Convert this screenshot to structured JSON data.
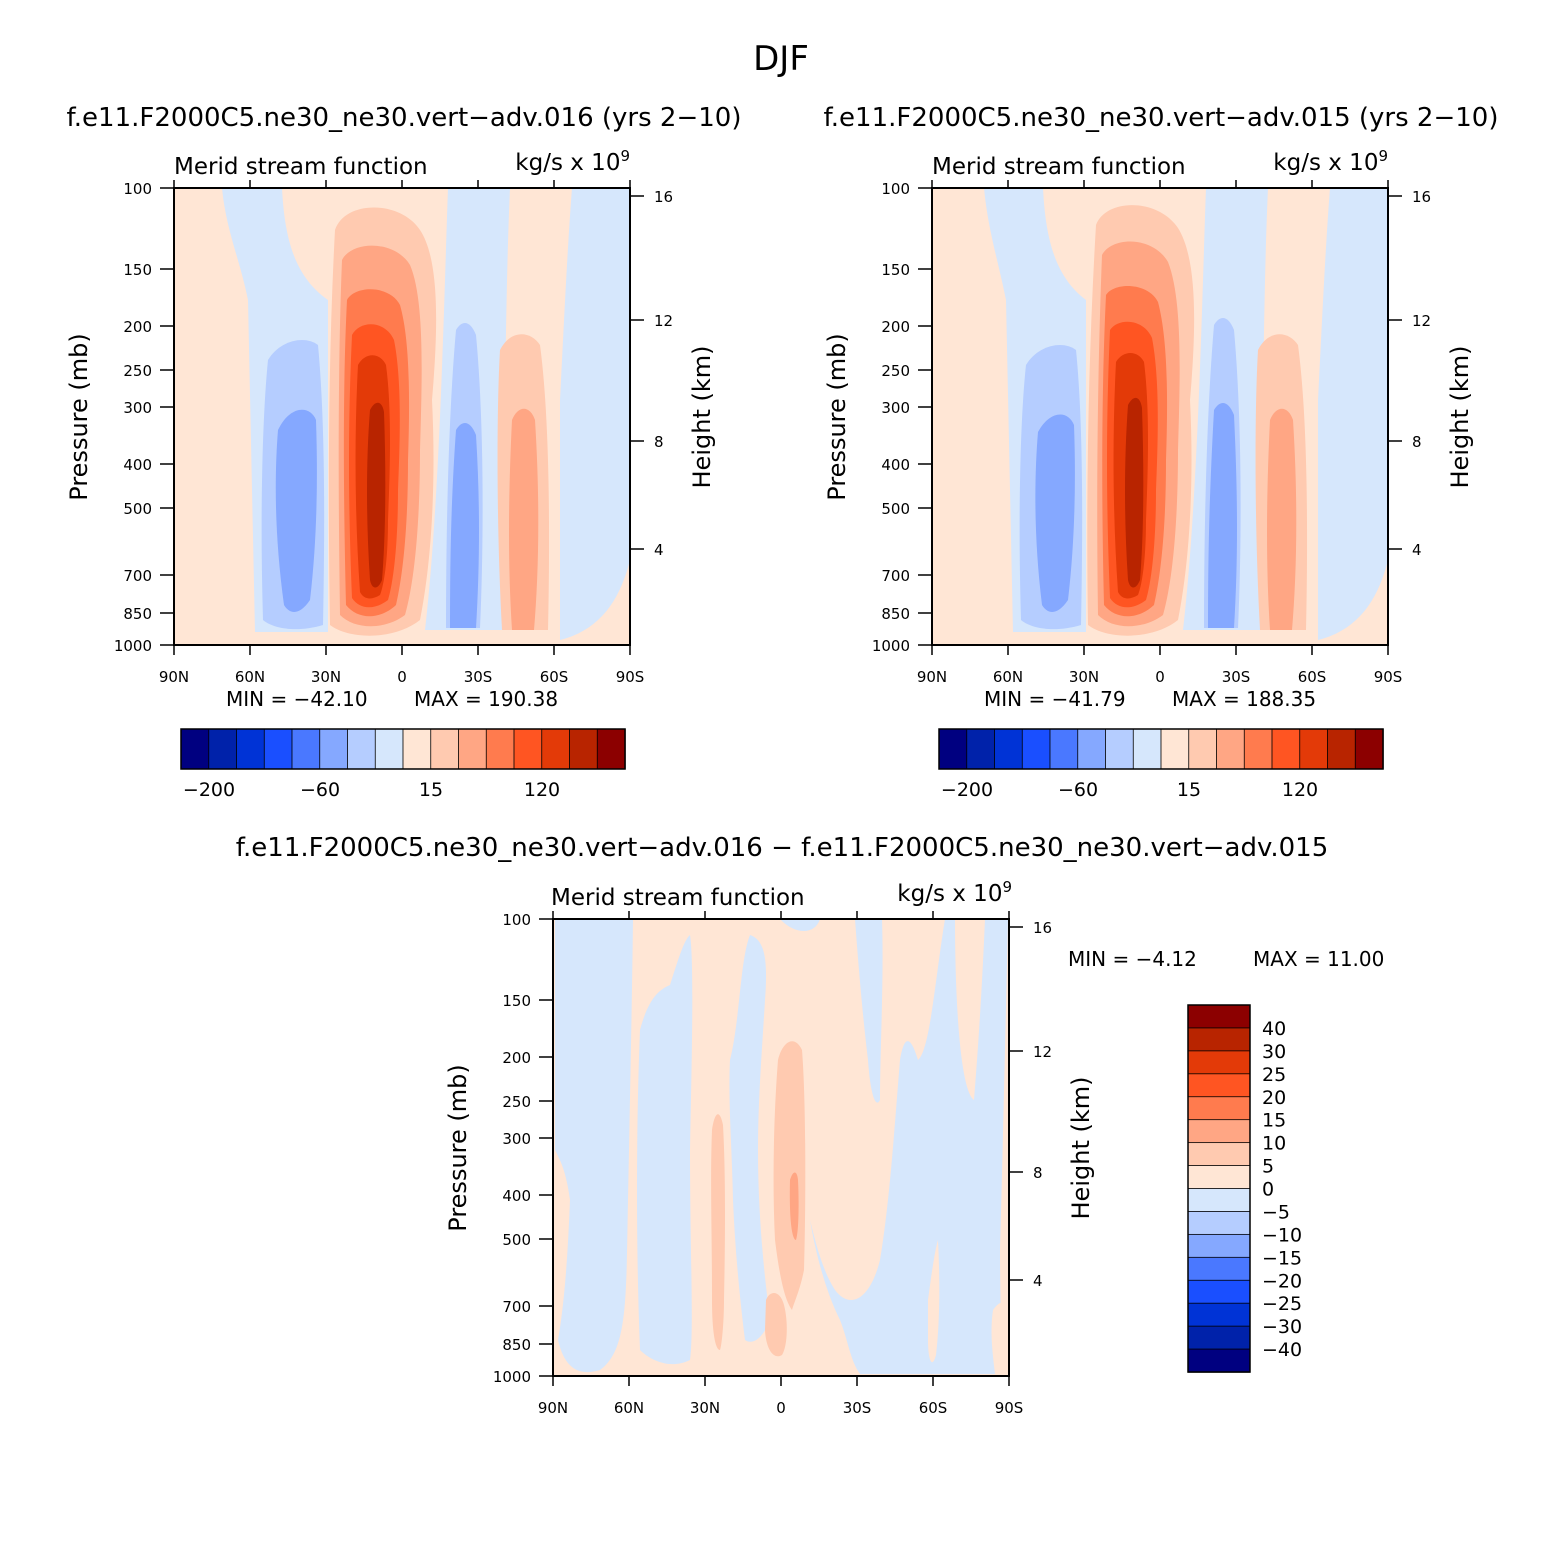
{
  "figure": {
    "title": "DJF"
  },
  "chart_data": [
    {
      "type": "heatmap",
      "case_title": "f.e11.F2000C5.ne30_ne30.vert−adv.016 (yrs 2−10)",
      "variable": "Merid stream function",
      "units_text": "kg/s x 10",
      "units_exp": "9",
      "xlabel": "",
      "ylabel": "Pressure (mb)",
      "y2label": "Height (km)",
      "x_ticks": [
        "90N",
        "60N",
        "30N",
        "0",
        "30S",
        "60S",
        "90S"
      ],
      "x_range": [
        90,
        -90
      ],
      "y_ticks": [
        "100",
        "150",
        "200",
        "250",
        "300",
        "400",
        "500",
        "700",
        "850",
        "1000"
      ],
      "y_range": [
        100,
        1000
      ],
      "y_scale": "log",
      "y2_ticks": [
        "16",
        "12",
        "8",
        "4"
      ],
      "min_label": "MIN = −42.10",
      "max_label": "MAX = 190.38",
      "min": -42.1,
      "max": 190.38,
      "colorbar_orientation": "horizontal",
      "colorbar_tick_labels": [
        "−200",
        "−60",
        "15",
        "120"
      ],
      "features": [
        {
          "center_lat": 43,
          "center_p": 440,
          "half_width_lat": 13,
          "top_p": 215,
          "value": -42
        },
        {
          "center_lat": 12,
          "center_p": 450,
          "half_width_lat": 17,
          "top_p": 130,
          "value": 190
        },
        {
          "center_lat": -23,
          "center_p": 500,
          "half_width_lat": 8,
          "top_p": 200,
          "value": -35
        },
        {
          "center_lat": -47,
          "center_p": 480,
          "half_width_lat": 10,
          "top_p": 205,
          "value": 45
        }
      ]
    },
    {
      "type": "heatmap",
      "case_title": "f.e11.F2000C5.ne30_ne30.vert−adv.015 (yrs 2−10)",
      "variable": "Merid stream function",
      "units_text": "kg/s x 10",
      "units_exp": "9",
      "xlabel": "",
      "ylabel": "Pressure (mb)",
      "y2label": "Height (km)",
      "x_ticks": [
        "90N",
        "60N",
        "30N",
        "0",
        "30S",
        "60S",
        "90S"
      ],
      "x_range": [
        90,
        -90
      ],
      "y_ticks": [
        "100",
        "150",
        "200",
        "250",
        "300",
        "400",
        "500",
        "700",
        "850",
        "1000"
      ],
      "y_range": [
        100,
        1000
      ],
      "y_scale": "log",
      "y2_ticks": [
        "16",
        "12",
        "8",
        "4"
      ],
      "min_label": "MIN = −41.79",
      "max_label": "MAX = 188.35",
      "min": -41.79,
      "max": 188.35,
      "colorbar_orientation": "horizontal",
      "colorbar_tick_labels": [
        "−200",
        "−60",
        "15",
        "120"
      ],
      "features": [
        {
          "center_lat": 42,
          "center_p": 440,
          "half_width_lat": 13,
          "top_p": 220,
          "value": -41
        },
        {
          "center_lat": 11,
          "center_p": 450,
          "half_width_lat": 17,
          "top_p": 130,
          "value": 188
        },
        {
          "center_lat": -23,
          "center_p": 500,
          "half_width_lat": 8,
          "top_p": 205,
          "value": -35
        },
        {
          "center_lat": -47,
          "center_p": 480,
          "half_width_lat": 10,
          "top_p": 205,
          "value": 45
        }
      ]
    },
    {
      "type": "heatmap",
      "case_title": "f.e11.F2000C5.ne30_ne30.vert−adv.016 − f.e11.F2000C5.ne30_ne30.vert−adv.015",
      "variable": "Merid stream function",
      "units_text": "kg/s x 10",
      "units_exp": "9",
      "xlabel": "",
      "ylabel": "Pressure (mb)",
      "y2label": "Height (km)",
      "x_ticks": [
        "90N",
        "60N",
        "30N",
        "0",
        "30S",
        "60S",
        "90S"
      ],
      "x_range": [
        90,
        -90
      ],
      "y_ticks": [
        "100",
        "150",
        "200",
        "250",
        "300",
        "400",
        "500",
        "700",
        "850",
        "1000"
      ],
      "y_range": [
        100,
        1000
      ],
      "y_scale": "log",
      "y2_ticks": [
        "16",
        "12",
        "8",
        "4"
      ],
      "min_label": "MIN =   −4.12",
      "max_label": "MAX =   11.00",
      "min": -4.12,
      "max": 11.0,
      "colorbar_orientation": "vertical",
      "colorbar_tick_labels": [
        "40",
        "30",
        "25",
        "20",
        "15",
        "10",
        "5",
        "0",
        "−5",
        "−10",
        "−15",
        "−20",
        "−25",
        "−30",
        "−40"
      ],
      "features": [
        {
          "lat_range": [
            90,
            85
          ],
          "sign": "positive"
        },
        {
          "lat_range": [
            57,
            35
          ],
          "sign": "negative"
        },
        {
          "lat_range": [
            30,
            27
          ],
          "p_range": [
            280,
            960
          ],
          "sign": "positive"
        },
        {
          "lat_range": [
            20,
            2
          ],
          "sign": "negative"
        },
        {
          "lat_range": [
            0,
            -10
          ],
          "p_range": [
            180,
            860
          ],
          "sign": "positive",
          "peak": 11.0
        },
        {
          "lat_range": [
            -30,
            -38
          ],
          "sign": "negative"
        },
        {
          "lat_range": [
            -50,
            -72
          ],
          "sign": "negative"
        },
        {
          "lat_range": [
            -80,
            -90
          ],
          "sign": "negative"
        }
      ]
    }
  ],
  "colorbar_colors": [
    "#000080",
    "#0022aa",
    "#0033d6",
    "#1a4fff",
    "#4a78ff",
    "#85a8ff",
    "#b5cdff",
    "#d6e7fc",
    "#ffe6d5",
    "#ffcab0",
    "#ffa684",
    "#ff7b4e",
    "#ff5522",
    "#e33a08",
    "#b82400",
    "#8c0000"
  ]
}
